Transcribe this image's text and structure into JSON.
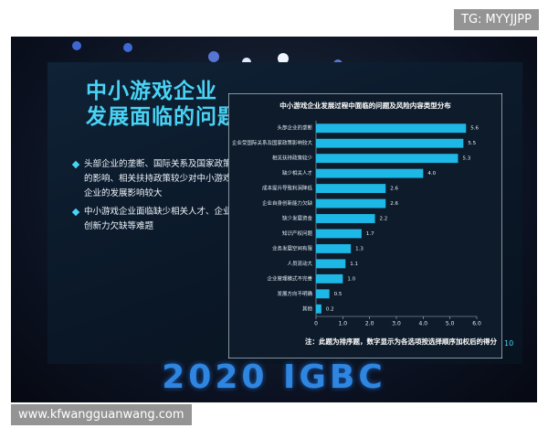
{
  "watermark_top": "TG: MYYJJPP",
  "watermark_bottom": "www.kfwangguanwang.com",
  "slide": {
    "title_lines": [
      "中小游戏企业",
      "发展面临的问题"
    ],
    "bullets": [
      "头部企业的垄断、国际关系及国家政策的影响、相关扶持政策较少对中小游戏企业的发展影响较大",
      "中小游戏企业面临缺少相关人才、企业创新力欠缺等难题"
    ],
    "page_number": "10",
    "event": "2020 IGBC"
  },
  "chart_data": {
    "type": "hbar",
    "title": "中小游戏企业发展过程中面临的问题及风险内容类型分布",
    "note": "注：此题为排序题，数字显示为各选项按选择顺序加权后的得分",
    "categories": [
      "头部企业的垄断",
      "企业受国际关系及国家政策影响较大",
      "相关扶持政策较少",
      "缺少相关人才",
      "成本提升导致利润降低",
      "企业自身创新能力欠缺",
      "缺少发展资金",
      "知识产权问题",
      "业务发展空间有限",
      "人员流动大",
      "企业管理模式不完善",
      "发展方向不明确",
      "其他"
    ],
    "values": [
      5.6,
      5.5,
      5.3,
      4.0,
      2.6,
      2.6,
      2.2,
      1.7,
      1.3,
      1.1,
      1.0,
      0.5,
      0.2
    ],
    "value_labels": [
      "5.6",
      "5.5",
      "5.3",
      "4.0",
      "2.6",
      "2.6",
      "2.2",
      "1.7",
      "1.3",
      "1.1",
      "1.0",
      "0.5",
      "0.2"
    ],
    "color": "#1eb8e6",
    "xlim": [
      0,
      6
    ],
    "xticks": [
      0,
      {
        "value": 1,
        "label": "1.0"
      },
      {
        "value": 2,
        "label": "2.0"
      },
      {
        "value": 3,
        "label": "3.0"
      },
      {
        "value": 4,
        "label": "4.0"
      },
      {
        "value": 5,
        "label": "5.0"
      },
      {
        "value": 6,
        "label": "6.0"
      }
    ]
  }
}
